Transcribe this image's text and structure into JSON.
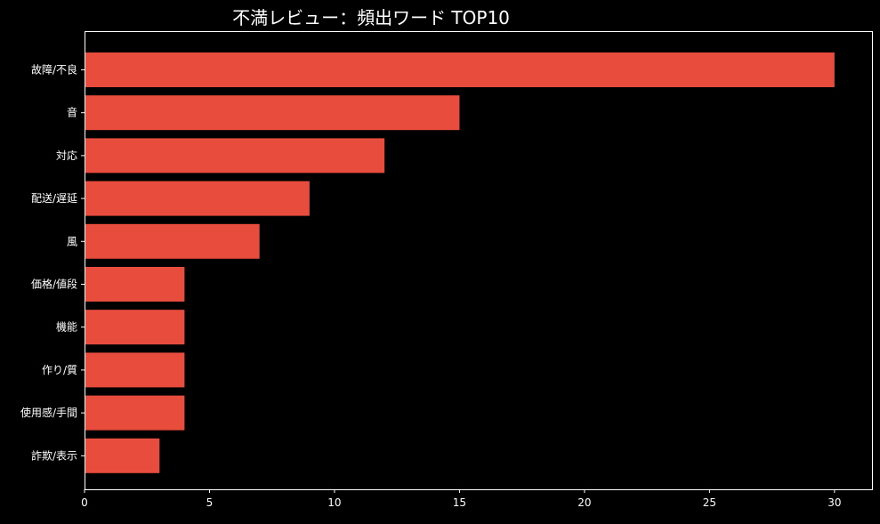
{
  "chart_data": {
    "type": "bar",
    "orientation": "horizontal",
    "title": "不満レビュー：頻出ワード TOP10",
    "xlabel": "",
    "ylabel": "",
    "categories": [
      "故障/不良",
      "音",
      "対応",
      "配送/遅延",
      "風",
      "価格/値段",
      "機能",
      "作り/質",
      "使用感/手間",
      "詐欺/表示"
    ],
    "values": [
      30,
      15,
      12,
      9,
      7,
      4,
      4,
      4,
      4,
      3
    ],
    "xlim": [
      0,
      31.5
    ],
    "xticks": [
      0,
      5,
      10,
      15,
      20,
      25,
      30
    ],
    "grid": false,
    "legend": "none",
    "colors": {
      "bar": "#e84c3d",
      "background": "#000000",
      "text": "#ffffff",
      "axes": "#ffffff"
    }
  }
}
